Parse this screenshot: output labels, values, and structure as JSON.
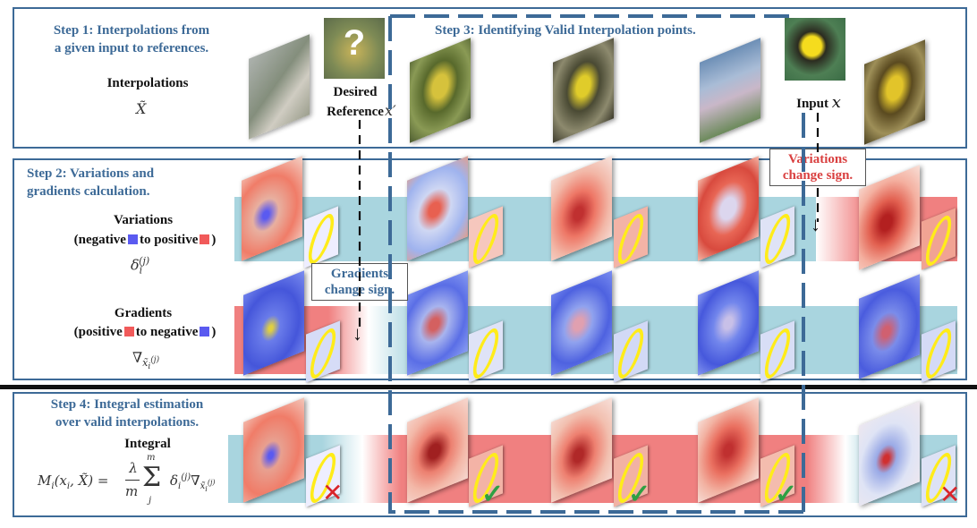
{
  "step1": {
    "title_line1": "Step 1: Interpolations from",
    "title_line2": "a given input to references.",
    "interp_label": "Interpolations",
    "interp_symbol": "X̃",
    "desired_line1": "Desired",
    "desired_line2": "Reference",
    "ref_symbol": "x′",
    "input_label": "Input",
    "input_symbol": "x"
  },
  "step2": {
    "title_line1": "Step 2: Variations and",
    "title_line2": "gradients calculation.",
    "variations_label": "Variations",
    "var_legend_pre": "(negative",
    "var_legend_mid": "to positive",
    "var_legend_post": ")",
    "var_symbol": "δi(j)",
    "gradients_label": "Gradients",
    "grad_legend_pre": "(positive",
    "grad_legend_mid": "to negative",
    "grad_legend_post": ")",
    "grad_symbol": "∇x̃i(j)",
    "gradients_callout_line1": "Gradients",
    "gradients_callout_line2": "change sign.",
    "variations_callout_line1": "Variations",
    "variations_callout_line2": "change sign."
  },
  "step3": {
    "title": "Step 3: Identifying Valid Interpolation points."
  },
  "step4": {
    "title_line1": "Step 4: Integral estimation",
    "title_line2": "over valid interpolations.",
    "integral_label": "Integral",
    "formula": "Mi(xi, X̃) = λ/m Σj..m δi(j) ∇x̃i(j)"
  },
  "validity": [
    "invalid",
    "valid",
    "valid",
    "valid",
    "invalid"
  ],
  "colors": {
    "frame": "#3d6a97",
    "teal_band": "#a9d5df",
    "red_band": "#f08080",
    "positive": "#f15a5a",
    "negative": "#5a5af0",
    "check": "#2ea043",
    "cross": "#d9242a"
  }
}
